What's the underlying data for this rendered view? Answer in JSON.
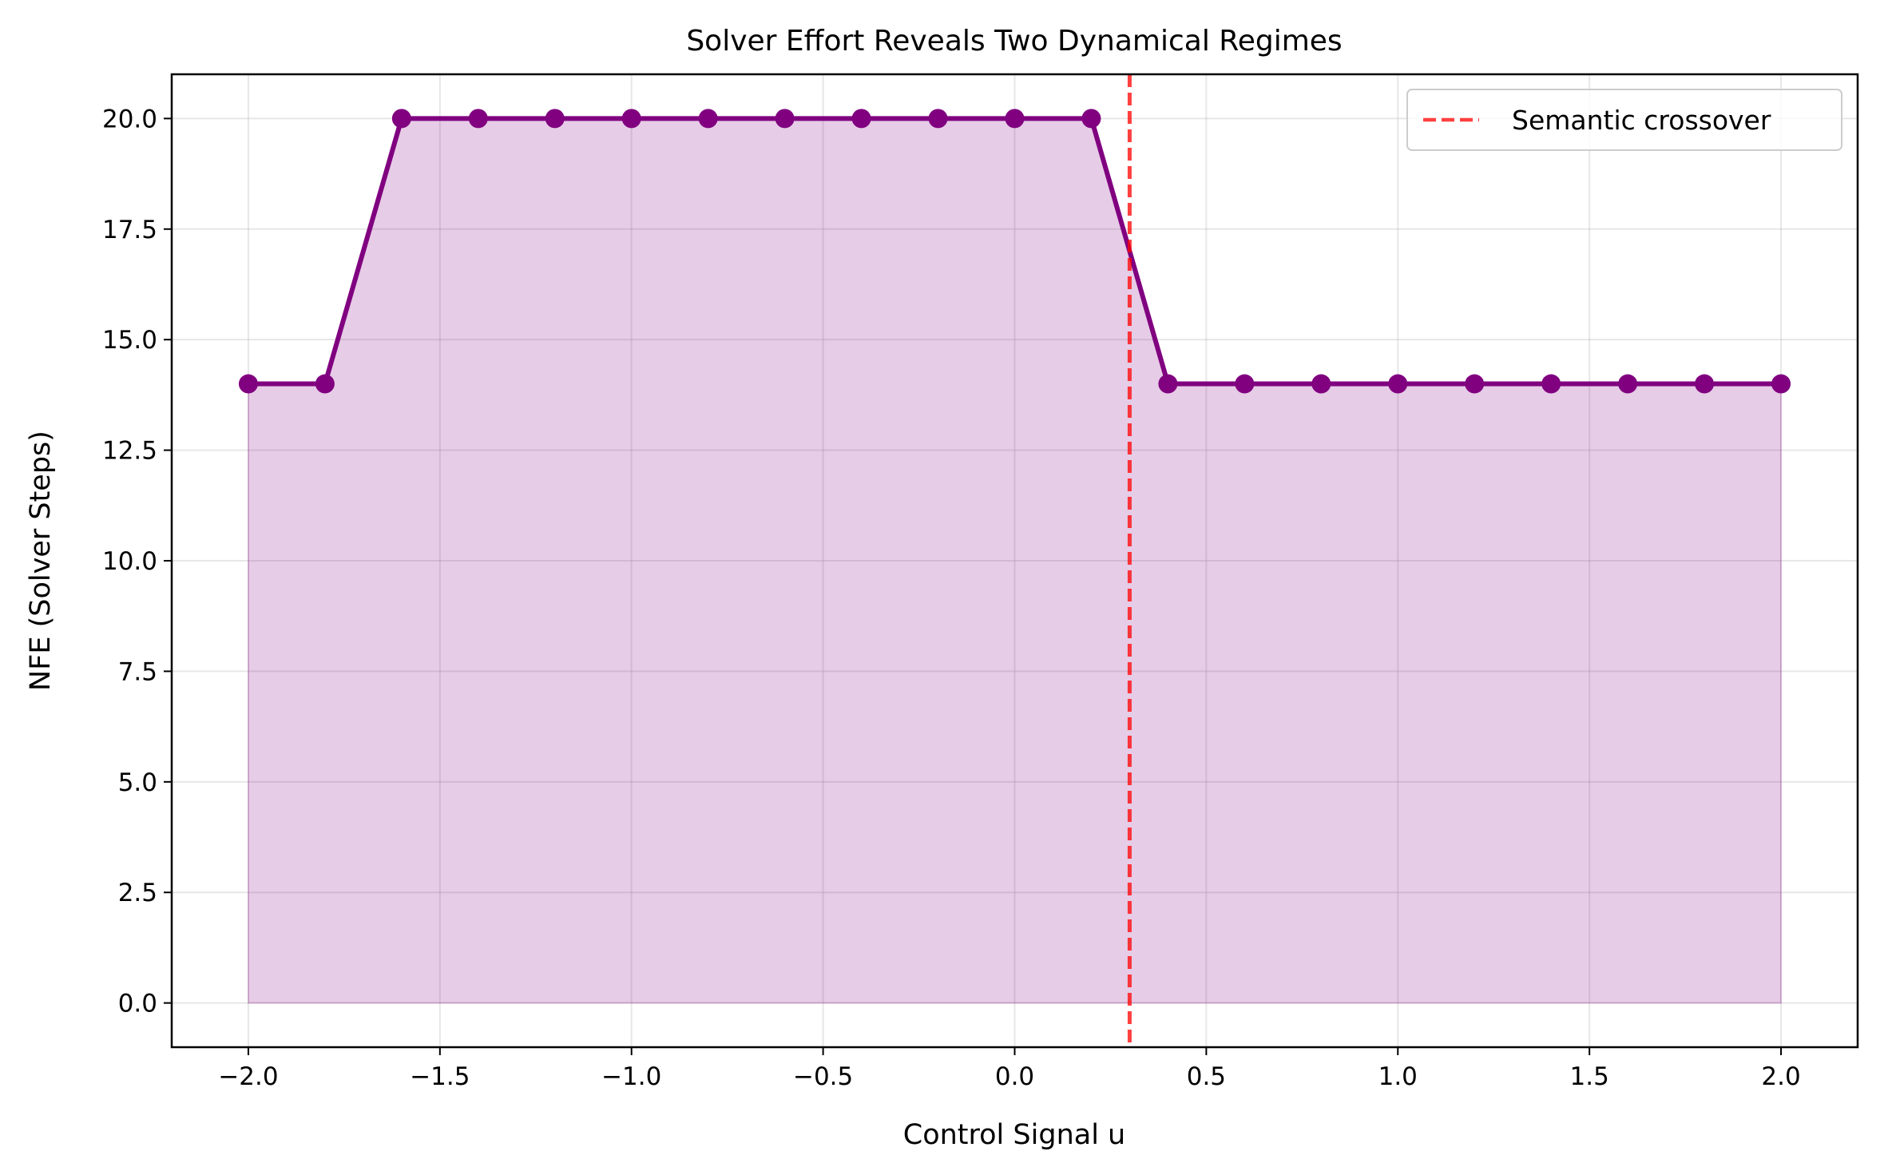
{
  "chart_data": {
    "type": "line",
    "title": "Solver Effort Reveals Two Dynamical Regimes",
    "xlabel": "Control Signal u",
    "ylabel": "NFE (Solver Steps)",
    "xlim": [
      -2.2,
      2.2
    ],
    "ylim": [
      -1.0,
      21.0
    ],
    "xticks": [
      -2.0,
      -1.5,
      -1.0,
      -0.5,
      0.0,
      0.5,
      1.0,
      1.5,
      2.0
    ],
    "xtick_labels": [
      "−2.0",
      "−1.5",
      "−1.0",
      "−0.5",
      "0.0",
      "0.5",
      "1.0",
      "1.5",
      "2.0"
    ],
    "yticks": [
      0.0,
      2.5,
      5.0,
      7.5,
      10.0,
      12.5,
      15.0,
      17.5,
      20.0
    ],
    "ytick_labels": [
      "0.0",
      "2.5",
      "5.0",
      "7.5",
      "10.0",
      "12.5",
      "15.0",
      "17.5",
      "20.0"
    ],
    "grid": true,
    "legend_position": "top-right",
    "series": [
      {
        "x": [
          -2.0,
          -1.8,
          -1.6,
          -1.4,
          -1.2,
          -1.0,
          -0.8,
          -0.6,
          -0.4,
          -0.2,
          0.0,
          0.2,
          0.4,
          0.6,
          0.8,
          1.0,
          1.2,
          1.4,
          1.6,
          1.8,
          2.0
        ],
        "y": [
          14,
          14,
          20,
          20,
          20,
          20,
          20,
          20,
          20,
          20,
          20,
          20,
          14,
          14,
          14,
          14,
          14,
          14,
          14,
          14,
          14
        ],
        "color": "#800080",
        "marker": "circle",
        "fill_to_zero": true,
        "fill_color": "#800080",
        "fill_alpha": 0.2
      }
    ],
    "vlines": [
      {
        "x": 0.3,
        "label": "Semantic crossover",
        "color": "#ff0000",
        "alpha": 0.75,
        "style": "dashed"
      }
    ]
  }
}
